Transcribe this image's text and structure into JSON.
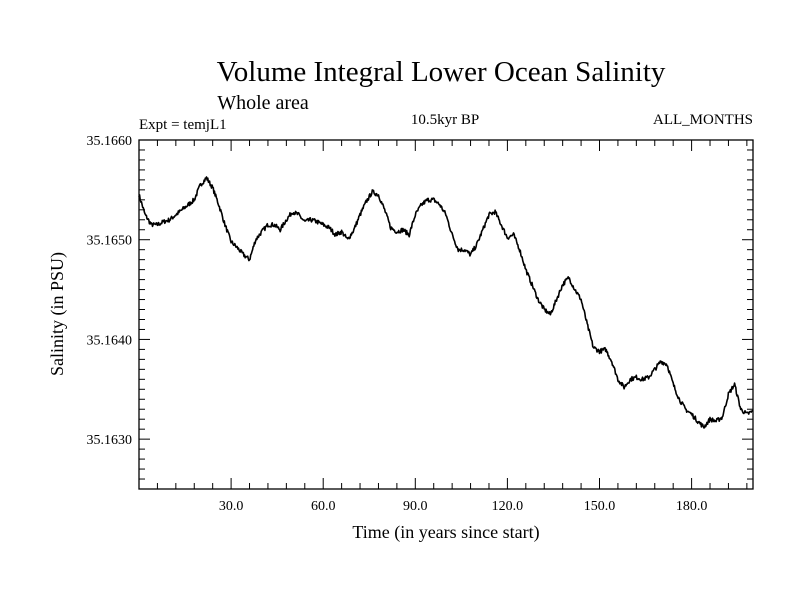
{
  "chart_data": {
    "type": "line",
    "title": "Volume Integral Lower Ocean Salinity",
    "subtitle": "Whole area",
    "experiment": "Expt = temjL1",
    "period": "10.5kyr BP",
    "months": "ALL_MONTHS",
    "xlabel": "Time (in years since start)",
    "ylabel": "Salinity (in PSU)",
    "xlim": [
      0,
      200
    ],
    "ylim": [
      35.1625,
      35.166
    ],
    "xticks": [
      30,
      60,
      90,
      120,
      150,
      180
    ],
    "xtick_labels": [
      "30.0",
      "60.0",
      "90.0",
      "120.0",
      "150.0",
      "180.0"
    ],
    "yticks": [
      35.163,
      35.164,
      35.165,
      35.166
    ],
    "ytick_labels": [
      "35.1630",
      "35.1640",
      "35.1650",
      "35.1660"
    ],
    "grid": false,
    "series": [
      {
        "name": "Salinity",
        "color": "#000000",
        "x": [
          0,
          2,
          4,
          6,
          8,
          10,
          12,
          14,
          16,
          18,
          20,
          22,
          24,
          26,
          28,
          30,
          32,
          34,
          36,
          38,
          40,
          42,
          44,
          46,
          48,
          50,
          52,
          54,
          56,
          58,
          60,
          62,
          64,
          66,
          68,
          70,
          72,
          74,
          76,
          78,
          80,
          82,
          84,
          86,
          88,
          90,
          92,
          94,
          96,
          98,
          100,
          102,
          104,
          106,
          108,
          110,
          112,
          114,
          116,
          118,
          120,
          122,
          124,
          126,
          128,
          130,
          132,
          134,
          136,
          138,
          140,
          142,
          144,
          146,
          148,
          150,
          152,
          154,
          156,
          158,
          160,
          162,
          164,
          166,
          168,
          170,
          172,
          174,
          176,
          178,
          180,
          182,
          184,
          186,
          188,
          190,
          192,
          194,
          196,
          198,
          200
        ],
        "values": [
          35.16545,
          35.16525,
          35.16515,
          35.16515,
          35.16518,
          35.1652,
          35.16525,
          35.1653,
          35.16535,
          35.1654,
          35.16555,
          35.16562,
          35.16552,
          35.16535,
          35.16515,
          35.16498,
          35.16492,
          35.16485,
          35.1648,
          35.165,
          35.16508,
          35.16515,
          35.16515,
          35.1651,
          35.1652,
          35.16528,
          35.16525,
          35.16518,
          35.1652,
          35.16518,
          35.16515,
          35.16512,
          35.16505,
          35.16508,
          35.165,
          35.1651,
          35.16525,
          35.16538,
          35.16548,
          35.16545,
          35.1653,
          35.16512,
          35.16508,
          35.1651,
          35.16505,
          35.16525,
          35.16535,
          35.1654,
          35.1654,
          35.16535,
          35.16525,
          35.16505,
          35.1649,
          35.1649,
          35.16485,
          35.16495,
          35.1651,
          35.16525,
          35.16528,
          35.16515,
          35.16502,
          35.16505,
          35.1649,
          35.1647,
          35.16455,
          35.1644,
          35.1643,
          35.16425,
          35.1644,
          35.16455,
          35.16462,
          35.1645,
          35.1644,
          35.16415,
          35.16392,
          35.16388,
          35.1639,
          35.16378,
          35.1636,
          35.16352,
          35.1636,
          35.16362,
          35.1636,
          35.16362,
          35.1637,
          35.16378,
          35.16375,
          35.16355,
          35.1634,
          35.1633,
          35.16325,
          35.16318,
          35.16312,
          35.1632,
          35.16318,
          35.16322,
          35.16345,
          35.16355,
          35.1633,
          35.16325,
          35.16328
        ]
      }
    ]
  }
}
